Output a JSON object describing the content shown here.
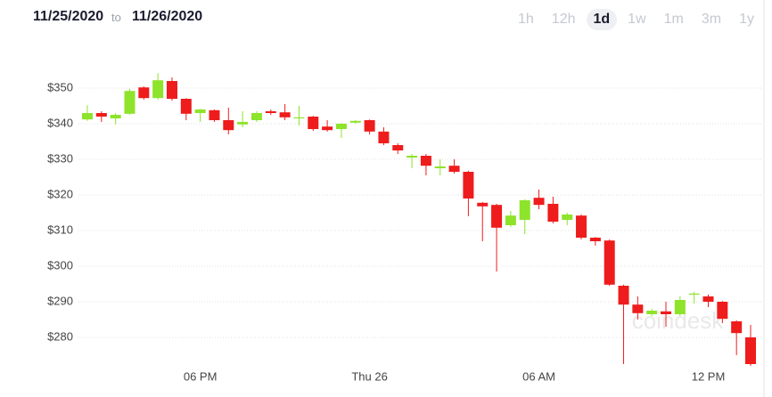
{
  "header": {
    "date_from": "11/25/2020",
    "separator": "to",
    "date_to": "11/26/2020",
    "ranges": [
      "1h",
      "12h",
      "1d",
      "1w",
      "1m",
      "3m",
      "1y"
    ],
    "selected_range": "1d"
  },
  "chart_data": {
    "type": "candlestick",
    "watermark": "coindesk",
    "up_color": "#8ee32b",
    "down_color": "#ee1c1c",
    "grid": true,
    "categories": [
      null,
      null,
      null,
      null,
      null,
      null,
      null,
      null,
      "06 PM",
      null,
      null,
      null,
      null,
      null,
      null,
      null,
      null,
      null,
      null,
      null,
      "Thu 26",
      null,
      null,
      null,
      null,
      null,
      null,
      null,
      null,
      null,
      null,
      null,
      "06 AM",
      null,
      null,
      null,
      null,
      null,
      null,
      null,
      null,
      null,
      null,
      null,
      "12 PM",
      null,
      null,
      null
    ],
    "open": [
      341.2,
      343,
      341.5,
      342.8,
      350.2,
      347.2,
      352,
      347,
      343,
      343.8,
      341,
      339.8,
      341,
      343.5,
      343.2,
      341.5,
      342,
      339.2,
      338.5,
      340.3,
      341,
      337.8,
      334,
      330.5,
      331,
      327.5,
      328.2,
      326.5,
      317.8,
      317.2,
      311.5,
      313,
      319.2,
      317.5,
      313,
      314.2,
      308,
      307.2,
      294.5,
      289.2,
      286.5,
      287.3,
      286.5,
      292,
      291.5,
      290,
      284.5,
      280
    ],
    "high": [
      345.2,
      343.5,
      343,
      349.8,
      350.5,
      354.2,
      353,
      347.2,
      344.2,
      344,
      344.5,
      343.5,
      343.5,
      344,
      345.5,
      345,
      342.2,
      341,
      340.2,
      341,
      341.2,
      339,
      334.5,
      331.5,
      331.5,
      330,
      330,
      326.8,
      318,
      317.5,
      315.5,
      318.8,
      321.5,
      319.5,
      315,
      314.5,
      308.2,
      307.5,
      294.8,
      291.5,
      288,
      290,
      291.5,
      292.8,
      292,
      290.2,
      284.8,
      283.5
    ],
    "low": [
      340.8,
      340.5,
      339.8,
      342.5,
      346.8,
      346.8,
      346.5,
      341,
      340.5,
      340.5,
      337,
      339,
      340.5,
      342.5,
      341,
      339.5,
      338,
      337.8,
      336,
      340,
      337,
      334,
      331.5,
      327.5,
      325.5,
      325.5,
      326,
      314,
      307,
      298.5,
      311,
      309,
      316,
      312,
      311.5,
      307.5,
      305.8,
      294.5,
      272.5,
      285,
      286,
      283,
      286,
      289.5,
      288.5,
      284,
      275,
      272
    ],
    "close": [
      343,
      342,
      342.5,
      349.2,
      347.2,
      352.2,
      347,
      342.8,
      344,
      341,
      338.2,
      340.5,
      343,
      343,
      341.8,
      341.8,
      338.5,
      338.2,
      340,
      340.8,
      337.8,
      334.5,
      332.5,
      331,
      328.2,
      328,
      326.5,
      319,
      316.8,
      310.8,
      314.2,
      318.5,
      317.2,
      312.5,
      314.5,
      308,
      307,
      294.8,
      289.2,
      286.8,
      287.5,
      286.5,
      290.5,
      292.3,
      290,
      285.2,
      281.2,
      272.5
    ],
    "ylim": [
      272,
      358
    ],
    "yticks": [
      {
        "value": 280,
        "label": "$280"
      },
      {
        "value": 290,
        "label": "$290"
      },
      {
        "value": 300,
        "label": "$300"
      },
      {
        "value": 310,
        "label": "$310"
      },
      {
        "value": 320,
        "label": "$320"
      },
      {
        "value": 330,
        "label": "$330"
      },
      {
        "value": 340,
        "label": "$340"
      },
      {
        "value": 350,
        "label": "$350"
      }
    ]
  }
}
